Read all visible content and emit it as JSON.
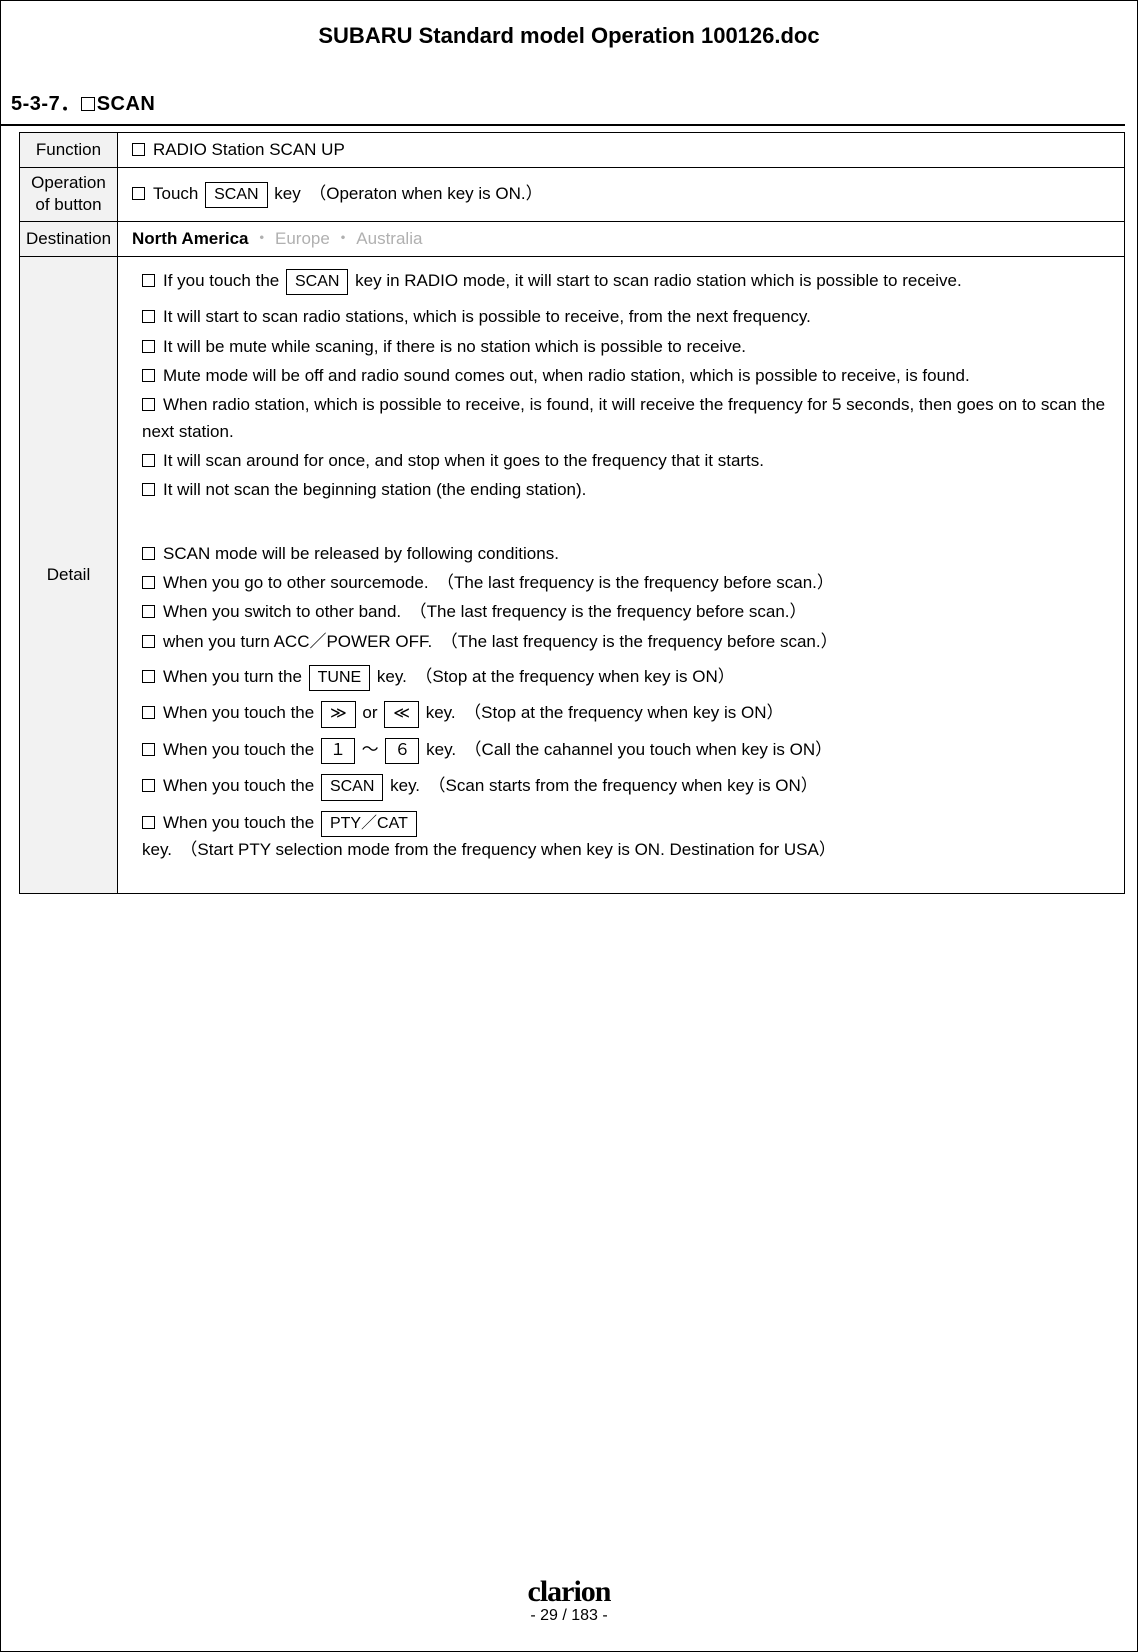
{
  "header": {
    "title": "SUBARU Standard model Operation 100126.doc"
  },
  "section": {
    "number": "5-3-7．",
    "title": "SCAN"
  },
  "table": {
    "labels": {
      "function": "Function",
      "operation": "Operation of button",
      "destination": "Destination",
      "detail": "Detail"
    },
    "function_text": "RADIO Station SCAN  UP",
    "operation": {
      "pre": "Touch ",
      "key": "SCAN",
      "post": " key　（Operaton when key is ON.）"
    },
    "destinations": {
      "active": "North America",
      "sep1": "・",
      "opt2": "Europe",
      "sep2": "・",
      "opt3": "Australia"
    }
  },
  "detail": {
    "l1": {
      "pre": "If you touch the ",
      "key": "SCAN",
      "post": " key in RADIO mode, it will start to scan radio station which is possible to receive."
    },
    "l2": "It will start to scan radio stations, which is possible to receive, from the next frequency.",
    "l3": "It will be mute while scaning, if there is no station which is possible to receive.",
    "l4": "Mute mode will be off and radio sound comes out, when radio station, which is possible to receive, is found.",
    "l5": "When radio station, which is possible to receive, is found, it will receive the frequency for 5 seconds, then goes on to scan the next station.",
    "l6": "It will scan around for once, and stop when it goes to the frequency that it starts.",
    "l7": "It will not scan the beginning station (the ending station).",
    "rel_header": "SCAN mode will be released by following conditions.",
    "rel1": "When you go to other sourcemode.　（The last frequency is the frequency before scan.）",
    "rel2": "When you switch to other band.　（The last frequency is the frequency before scan.）",
    "rel3": "when you turn ACC／POWER  OFF.　（The last frequency is the frequency before scan.）",
    "rel4": {
      "pre": "When you turn the ",
      "key": "TUNE",
      "post": " key.　（Stop at the frequency when key is ON）"
    },
    "rel5": {
      "pre": "When you touch the ",
      "key1": "≫",
      "mid": " or ",
      "key2": "≪",
      "post": " key.　（Stop at the frequency when key is ON）"
    },
    "rel6": {
      "pre": "When you touch the ",
      "key1": "１",
      "mid": " ～ ",
      "key2": "６",
      "post": " key.　（Call the cahannel you touch when key is ON）"
    },
    "rel7": {
      "pre": "When you touch the ",
      "key": "SCAN",
      "post": " key.　（Scan starts from the frequency when key is ON）"
    },
    "rel8": {
      "pre": "When you touch the ",
      "key": "PTY／CAT",
      "post": " key.　（Start PTY selection mode from the frequency when key is ON. Destination for USA）"
    }
  },
  "footer": {
    "brand": "clarion",
    "page": "- 29 / 183 -"
  }
}
